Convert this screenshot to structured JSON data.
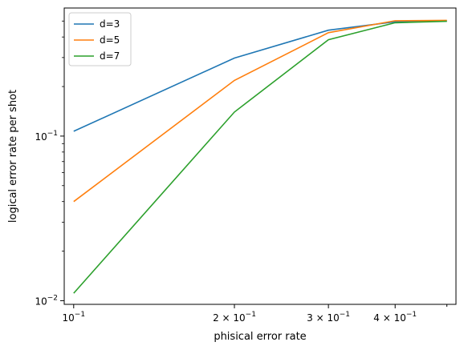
{
  "chart_data": {
    "type": "line",
    "xscale": "log",
    "yscale": "log",
    "xlabel": "phisical error rate",
    "ylabel": "logical error rate per shot",
    "xlim": [
      0.096,
      0.52
    ],
    "ylim": [
      0.0095,
      0.6
    ],
    "x": [
      0.1,
      0.2,
      0.3,
      0.4,
      0.5
    ],
    "x_ticks": [
      {
        "value": 0.1,
        "base": "10",
        "exp": "−1"
      },
      {
        "value": 0.2,
        "base": "2 × 10",
        "exp": "−1"
      },
      {
        "value": 0.3,
        "base": "3 × 10",
        "exp": "−1"
      },
      {
        "value": 0.4,
        "base": "4 × 10",
        "exp": "−1"
      }
    ],
    "y_ticks": [
      {
        "value": 0.01,
        "base": "10",
        "exp": "−2"
      },
      {
        "value": 0.1,
        "base": "10",
        "exp": "−1"
      }
    ],
    "series": [
      {
        "name": "d=3",
        "color": "#1f77b4",
        "values": [
          0.107,
          0.298,
          0.44,
          0.495,
          0.5
        ]
      },
      {
        "name": "d=5",
        "color": "#ff7f0e",
        "values": [
          0.04,
          0.218,
          0.425,
          0.502,
          0.505
        ]
      },
      {
        "name": "d=7",
        "color": "#2ca02c",
        "values": [
          0.0111,
          0.14,
          0.385,
          0.488,
          0.498
        ]
      }
    ],
    "legend": "top-left",
    "grid": false
  }
}
